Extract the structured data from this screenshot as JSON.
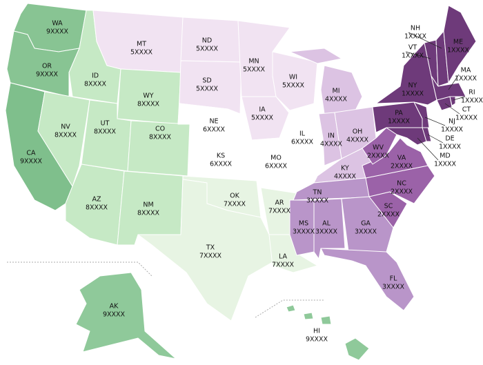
{
  "states": [
    {
      "abbr": "WA",
      "zip": "9XXXX",
      "color": "#88c493"
    },
    {
      "abbr": "OR",
      "zip": "9XXXX",
      "color": "#88c493"
    },
    {
      "abbr": "CA",
      "zip": "9XXXX",
      "color": "#7fbf8c"
    },
    {
      "abbr": "ID",
      "zip": "8XXXX",
      "color": "#c6e9c5"
    },
    {
      "abbr": "MT",
      "zip": "5XXXX",
      "color": "#f1e3f2"
    },
    {
      "abbr": "WY",
      "zip": "8XXXX",
      "color": "#c6e9c5"
    },
    {
      "abbr": "NV",
      "zip": "8XXXX",
      "color": "#c6e9c5"
    },
    {
      "abbr": "UT",
      "zip": "8XXXX",
      "color": "#c6e9c5"
    },
    {
      "abbr": "CO",
      "zip": "8XXXX",
      "color": "#c6e9c5"
    },
    {
      "abbr": "AZ",
      "zip": "8XXXX",
      "color": "#c6e9c5"
    },
    {
      "abbr": "NM",
      "zip": "8XXXX",
      "color": "#c6e9c5"
    },
    {
      "abbr": "ND",
      "zip": "5XXXX",
      "color": "#f1e3f2"
    },
    {
      "abbr": "SD",
      "zip": "5XXXX",
      "color": "#f1e3f2"
    },
    {
      "abbr": "NE",
      "zip": "6XXXX",
      "color": "#ffffff"
    },
    {
      "abbr": "KS",
      "zip": "6XXXX",
      "color": "#ffffff"
    },
    {
      "abbr": "OK",
      "zip": "7XXXX",
      "color": "#e7f4e3"
    },
    {
      "abbr": "TX",
      "zip": "7XXXX",
      "color": "#e7f4e3"
    },
    {
      "abbr": "MN",
      "zip": "5XXXX",
      "color": "#f1e3f2"
    },
    {
      "abbr": "IA",
      "zip": "5XXXX",
      "color": "#f1e3f2"
    },
    {
      "abbr": "MO",
      "zip": "6XXXX",
      "color": "#ffffff"
    },
    {
      "abbr": "AR",
      "zip": "7XXXX",
      "color": "#e7f4e3"
    },
    {
      "abbr": "LA",
      "zip": "7XXXX",
      "color": "#e7f4e3"
    },
    {
      "abbr": "WI",
      "zip": "5XXXX",
      "color": "#f1e3f2"
    },
    {
      "abbr": "IL",
      "zip": "6XXXX",
      "color": "#ffffff"
    },
    {
      "abbr": "MI",
      "zip": "4XXXX",
      "color": "#dcc3e3"
    },
    {
      "abbr": "IN",
      "zip": "4XXXX",
      "color": "#dcc3e3"
    },
    {
      "abbr": "OH",
      "zip": "4XXXX",
      "color": "#dcc3e3"
    },
    {
      "abbr": "KY",
      "zip": "4XXXX",
      "color": "#dcc3e3"
    },
    {
      "abbr": "TN",
      "zip": "3XXXX",
      "color": "#b995c9"
    },
    {
      "abbr": "MS",
      "zip": "3XXXX",
      "color": "#b995c9"
    },
    {
      "abbr": "AL",
      "zip": "3XXXX",
      "color": "#b995c9"
    },
    {
      "abbr": "GA",
      "zip": "3XXXX",
      "color": "#b995c9"
    },
    {
      "abbr": "FL",
      "zip": "3XXXX",
      "color": "#b995c9"
    },
    {
      "abbr": "SC",
      "zip": "2XXXX",
      "color": "#9b62a8"
    },
    {
      "abbr": "NC",
      "zip": "2XXXX",
      "color": "#9b62a8"
    },
    {
      "abbr": "VA",
      "zip": "2XXXX",
      "color": "#9b62a8"
    },
    {
      "abbr": "WV",
      "zip": "2XXXX",
      "color": "#9b62a8"
    },
    {
      "abbr": "MD",
      "zip": "1XXXX",
      "color": "#6e3a7a"
    },
    {
      "abbr": "DE",
      "zip": "1XXXX",
      "color": "#6e3a7a"
    },
    {
      "abbr": "PA",
      "zip": "1XXXX",
      "color": "#6e3a7a"
    },
    {
      "abbr": "NJ",
      "zip": "1XXXX",
      "color": "#6e3a7a"
    },
    {
      "abbr": "NY",
      "zip": "1XXXX",
      "color": "#6e3a7a"
    },
    {
      "abbr": "CT",
      "zip": "1XXXX",
      "color": "#6e3a7a"
    },
    {
      "abbr": "RI",
      "zip": "1XXXX",
      "color": "#6e3a7a"
    },
    {
      "abbr": "MA",
      "zip": "1XXXX",
      "color": "#6e3a7a"
    },
    {
      "abbr": "VT",
      "zip": "1XXXX",
      "color": "#6e3a7a"
    },
    {
      "abbr": "NH",
      "zip": "1XXXX",
      "color": "#6e3a7a"
    },
    {
      "abbr": "ME",
      "zip": "1XXXX",
      "color": "#6e3a7a"
    },
    {
      "abbr": "AK",
      "zip": "9XXXX",
      "color": "#8fc99a"
    },
    {
      "abbr": "HI",
      "zip": "9XXXX",
      "color": "#8fc99a"
    }
  ]
}
